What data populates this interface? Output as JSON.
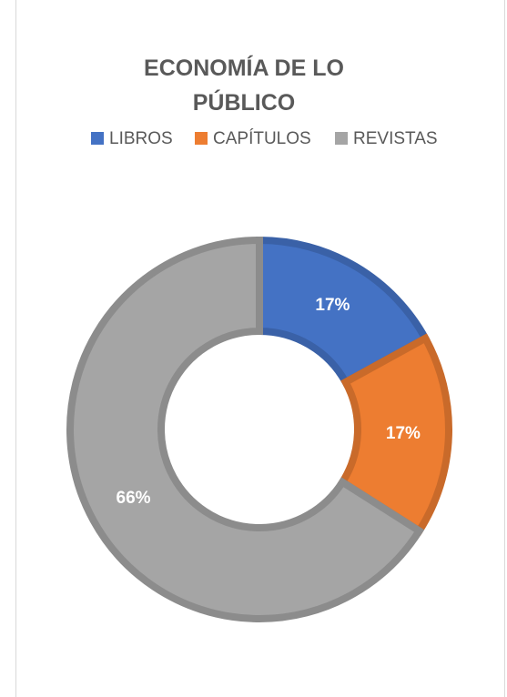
{
  "chart_data": {
    "type": "donut",
    "title": "ECONOMÍA DE LO PÚBLICO",
    "categories": [
      "LIBROS",
      "CAPÍTULOS",
      "REVISTAS"
    ],
    "values": [
      17,
      17,
      66
    ],
    "value_labels": [
      "17%",
      "17%",
      "66%"
    ],
    "colors": [
      "#4472c4",
      "#ed7d31",
      "#a5a5a5"
    ],
    "legend": "top"
  }
}
